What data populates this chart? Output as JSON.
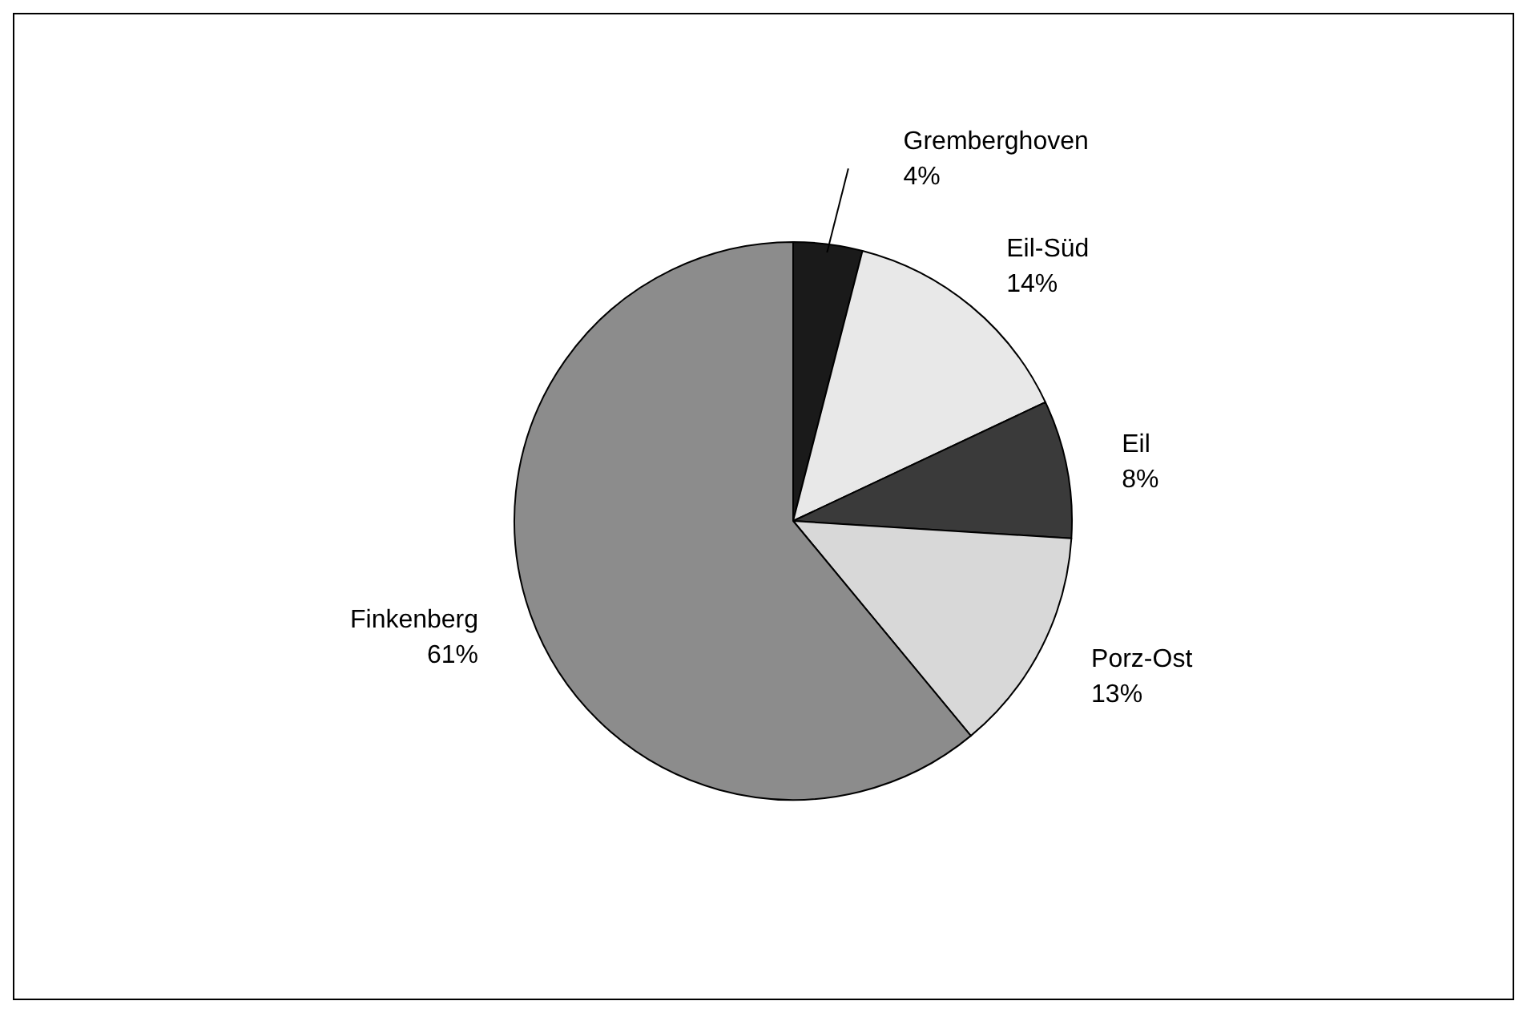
{
  "chart_data": {
    "type": "pie",
    "categories": [
      "Gremberghoven",
      "Eil-Süd",
      "Eil",
      "Porz-Ost",
      "Finkenberg"
    ],
    "values": [
      4,
      14,
      8,
      13,
      61
    ],
    "value_labels": [
      "4%",
      "14%",
      "8%",
      "13%",
      "61%"
    ],
    "colors": [
      "#1a1a1a",
      "#e8e8e8",
      "#3a3a3a",
      "#d8d8d8",
      "#8c8c8c"
    ],
    "legend": false
  }
}
